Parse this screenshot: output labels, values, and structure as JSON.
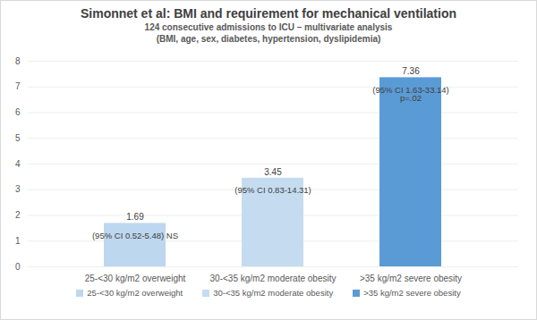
{
  "chart_data": {
    "type": "bar",
    "title": "Simonnet et al: BMI and requirement for mechanical ventilation",
    "subtitle": [
      "124 consecutive admissions to ICU – multivariate analysis",
      "(BMI, age, sex, diabetes, hypertension, dyslipidemia)"
    ],
    "categories": [
      "25-<30 kg/m2 overweight",
      "30-<35 kg/m2 moderate obesity",
      ">35 kg/m2 severe obesity"
    ],
    "values": [
      1.69,
      3.45,
      7.36
    ],
    "annotations": [
      "(95% CI 0.52-5.48) NS",
      "(95% CI 0.83-14.31)",
      "(95% CI 1.63-33.14)\np=.02"
    ],
    "colors": [
      "#bdd7ee",
      "#c5dcf0",
      "#5b9bd5"
    ],
    "ylim": [
      0,
      8
    ],
    "yticks": [
      0,
      1,
      2,
      3,
      4,
      5,
      6,
      7,
      8
    ],
    "grid": true,
    "data_labels": true,
    "legend": "bottom"
  }
}
